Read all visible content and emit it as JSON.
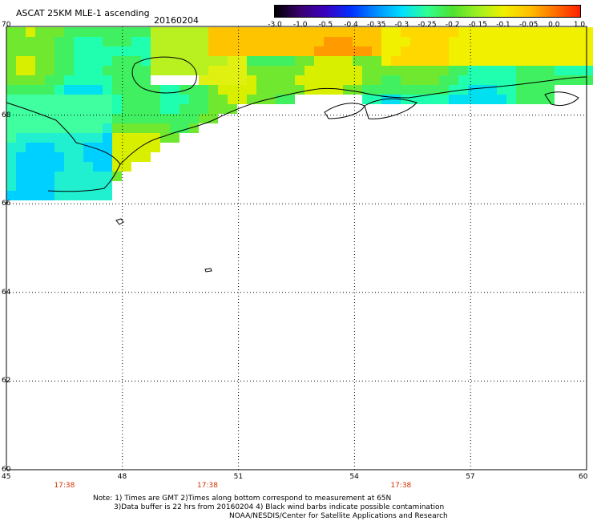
{
  "header": {
    "title": "ASCAT 25KM MLE-1 ascending",
    "date": "20160204"
  },
  "colorbar": {
    "labels": [
      "-3.0",
      "-1.0",
      "-0.5",
      "-0.4",
      "-0.35",
      "-0.3",
      "-0.25",
      "-0.2",
      "-0.15",
      "-0.1",
      "-0.05",
      "0.0",
      "1.0"
    ],
    "colors": [
      "#000000",
      "#3a0070",
      "#3a00c0",
      "#0030ff",
      "#0090ff",
      "#00e0ff",
      "#30ff90",
      "#50e030",
      "#a0f020",
      "#f0f000",
      "#ffc000",
      "#ff7000",
      "#ff2000"
    ]
  },
  "map": {
    "lat_labels": [
      "70",
      "68",
      "66",
      "64",
      "62",
      "60"
    ],
    "lon_labels": [
      "45",
      "48",
      "51",
      "54",
      "57",
      "60"
    ],
    "lat_range": [
      60,
      70
    ],
    "lon_range": [
      45,
      60
    ],
    "grid": "dotted"
  },
  "times": [
    {
      "label": "17:38",
      "lon": 46.5
    },
    {
      "label": "17:38",
      "lon": 50.2
    },
    {
      "label": "17:38",
      "lon": 55.2
    }
  ],
  "notes": {
    "line1": "Note: 1) Times are GMT 2)Times along bottom correspond to measurement at 65N",
    "line2": "3)Data buffer is 22 hrs from 20160204 4) Black wind barbs indicate possible contamination",
    "line3": "NOAA/NESDIS/Center for Satellite Applications and Research"
  }
}
